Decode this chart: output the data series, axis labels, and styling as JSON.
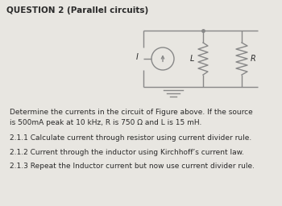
{
  "title": "QUESTION 2 (Parallel circuits)",
  "background_color": "#e8e6e1",
  "text_color": "#2a2a2a",
  "circuit_color": "#888888",
  "body_text_1a": "Determine the currents in the circuit of Figure above. If the source",
  "body_text_1b": "is 500mA peak at 10 kHz, R is 750 Ω and L is 15 mH.",
  "body_text_2": "2.1.1 Calculate current through resistor using current divider rule.",
  "body_text_3": "2.1.2 Current through the inductor using Kirchhoff’s current law.",
  "body_text_4": "2.1.3 Repeat the Inductor current but now use current divider rule.",
  "figsize": [
    3.5,
    2.56
  ],
  "dpi": 100
}
